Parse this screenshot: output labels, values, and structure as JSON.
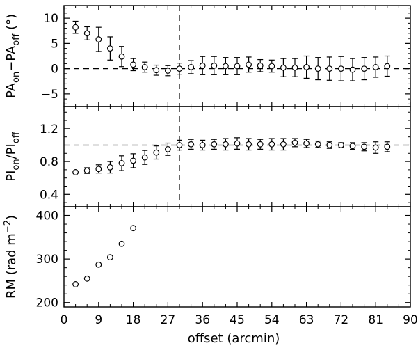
{
  "figure": {
    "xlabel": "offset (arcmin)",
    "xticks": [
      0,
      9,
      18,
      27,
      36,
      45,
      54,
      63,
      72,
      81,
      90
    ]
  },
  "chart_data": [
    {
      "type": "scatter",
      "panel": "top",
      "ylabel_html": "PA<tspan baseline-shift='sub' font-size='13'>on</tspan>−PA<tspan baseline-shift='sub' font-size='13'>off</tspan> (°)",
      "ylabel_parts": [
        "PA",
        "on",
        "−PA",
        "off",
        " (°)"
      ],
      "xlim": [
        0,
        90
      ],
      "ylim": [
        -7.5,
        12.5
      ],
      "yticks": [
        -5,
        0,
        5,
        10
      ],
      "ytick_labels": [
        "−5",
        "0",
        "5",
        "10"
      ],
      "hline": 0,
      "vline": 30,
      "x": [
        3,
        6,
        9,
        12,
        15,
        18,
        21,
        24,
        27,
        30,
        33,
        36,
        39,
        42,
        45,
        48,
        51,
        54,
        57,
        60,
        63,
        66,
        69,
        72,
        75,
        78,
        81,
        84
      ],
      "y": [
        8.2,
        7.0,
        5.8,
        4.0,
        2.4,
        0.8,
        0.3,
        -0.3,
        -0.4,
        0.0,
        0.3,
        0.6,
        0.6,
        0.5,
        0.5,
        0.8,
        0.6,
        0.5,
        0.2,
        0.2,
        0.3,
        0.0,
        0.0,
        0.0,
        -0.2,
        0.0,
        0.3,
        0.5
      ],
      "err": [
        1.2,
        1.3,
        2.4,
        2.3,
        2.0,
        1.2,
        1.0,
        1.0,
        1.0,
        1.1,
        1.3,
        1.8,
        1.8,
        1.7,
        1.7,
        1.5,
        1.2,
        1.2,
        1.8,
        1.8,
        2.2,
        2.2,
        2.3,
        2.4,
        2.2,
        2.2,
        2.0,
        2.0
      ]
    },
    {
      "type": "scatter",
      "panel": "middle",
      "ylabel_parts": [
        "PI",
        "on",
        "/PI",
        "off"
      ],
      "xlim": [
        0,
        90
      ],
      "ylim": [
        0.25,
        1.47
      ],
      "yticks": [
        0.4,
        0.8,
        1.2
      ],
      "ytick_labels": [
        "0.4",
        "0.8",
        "1.2"
      ],
      "hline": 1.0,
      "vline": 30,
      "x": [
        3,
        6,
        9,
        12,
        15,
        18,
        21,
        24,
        27,
        30,
        33,
        36,
        39,
        42,
        45,
        48,
        51,
        54,
        57,
        60,
        63,
        66,
        69,
        72,
        75,
        78,
        81,
        84
      ],
      "y": [
        0.67,
        0.69,
        0.71,
        0.73,
        0.78,
        0.81,
        0.85,
        0.91,
        0.95,
        1.0,
        1.01,
        1.0,
        1.01,
        1.01,
        1.02,
        1.01,
        1.01,
        1.01,
        1.01,
        1.03,
        1.02,
        1.01,
        1.0,
        1.0,
        0.99,
        0.98,
        0.97,
        0.98
      ],
      "err": [
        0.015,
        0.035,
        0.05,
        0.07,
        0.09,
        0.085,
        0.085,
        0.08,
        0.075,
        0.06,
        0.06,
        0.06,
        0.06,
        0.07,
        0.07,
        0.07,
        0.06,
        0.07,
        0.07,
        0.05,
        0.05,
        0.04,
        0.04,
        0.03,
        0.04,
        0.05,
        0.07,
        0.06
      ]
    },
    {
      "type": "scatter",
      "panel": "bottom",
      "ylabel_parts": [
        "RM (rad m",
        "−2",
        ")"
      ],
      "xlim": [
        0,
        90
      ],
      "ylim": [
        190,
        420
      ],
      "yticks": [
        200,
        300,
        400
      ],
      "ytick_labels": [
        "200",
        "300",
        "400"
      ],
      "x": [
        3,
        6,
        9,
        12,
        15,
        18
      ],
      "y": [
        242,
        255,
        287,
        304,
        335,
        371
      ]
    }
  ]
}
